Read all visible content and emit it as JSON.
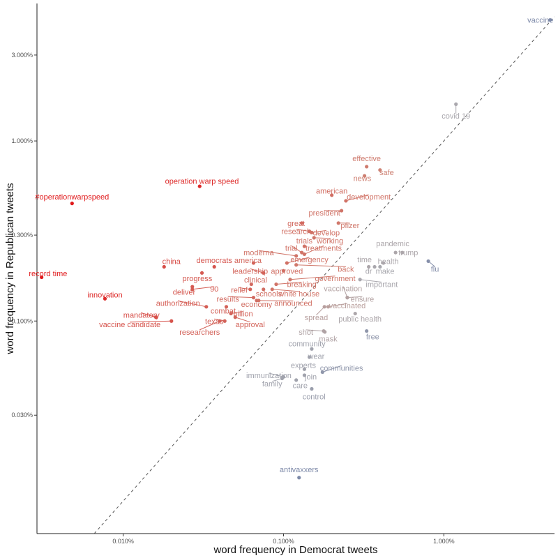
{
  "chart_data": {
    "type": "scatter",
    "title": "",
    "xlabel": "word frequency in Democrat tweets",
    "ylabel": "word frequency in Republican tweets",
    "x_scale": "log10",
    "y_scale": "log10",
    "xlim": [
      0.0029,
      4.9
    ],
    "ylim": [
      0.0066,
      5.8
    ],
    "x_ticks": [
      {
        "value": 0.01,
        "label": "0.010%"
      },
      {
        "value": 0.1,
        "label": "0.100%"
      },
      {
        "value": 1,
        "label": "1.000%"
      }
    ],
    "y_ticks": [
      {
        "value": 0.03,
        "label": "0.030%"
      },
      {
        "value": 0.1,
        "label": "0.100%"
      },
      {
        "value": 0.3,
        "label": "0.300%"
      },
      {
        "value": 1,
        "label": "1.000%"
      },
      {
        "value": 3,
        "label": "3.000%"
      }
    ],
    "reference_line": "y = x (dashed)",
    "grid": false,
    "color_scale": {
      "republican": "#e0191b",
      "neutral": "#a8a8ae",
      "democrat": "#7e8aa9"
    },
    "points": [
      {
        "word": "vaccine",
        "x": 4.6,
        "y": 4.7,
        "lean": 0.0
      },
      {
        "word": "covid 19",
        "x": 1.19,
        "y": 1.6,
        "lean": 0.13
      },
      {
        "word": "effective",
        "x": 0.33,
        "y": 0.72,
        "lean": 0.42
      },
      {
        "word": "safe",
        "x": 0.4,
        "y": 0.69,
        "lean": 0.38
      },
      {
        "word": "news",
        "x": 0.32,
        "y": 0.64,
        "lean": 0.4
      },
      {
        "word": "operation warp speed",
        "x": 0.03,
        "y": 0.56,
        "lean": 0.9
      },
      {
        "word": "#operationwarpspeed",
        "x": 0.0048,
        "y": 0.45,
        "lean": 1.0
      },
      {
        "word": "american",
        "x": 0.2,
        "y": 0.5,
        "lean": 0.5
      },
      {
        "word": "development",
        "x": 0.245,
        "y": 0.465,
        "lean": 0.47
      },
      {
        "word": "president",
        "x": 0.23,
        "y": 0.41,
        "lean": 0.46
      },
      {
        "word": "great",
        "x": 0.13,
        "y": 0.35,
        "lean": 0.52
      },
      {
        "word": "pfizer",
        "x": 0.22,
        "y": 0.35,
        "lean": 0.44
      },
      {
        "word": "research",
        "x": 0.145,
        "y": 0.315,
        "lean": 0.48
      },
      {
        "word": "develop",
        "x": 0.15,
        "y": 0.31,
        "lean": 0.47
      },
      {
        "word": "working",
        "x": 0.155,
        "y": 0.29,
        "lean": 0.46
      },
      {
        "word": "trials",
        "x": 0.135,
        "y": 0.26,
        "lean": 0.47
      },
      {
        "word": "trial",
        "x": 0.13,
        "y": 0.24,
        "lean": 0.47
      },
      {
        "word": "treatments",
        "x": 0.135,
        "y": 0.235,
        "lean": 0.46
      },
      {
        "word": "moderna",
        "x": 0.12,
        "y": 0.23,
        "lean": 0.46
      },
      {
        "word": "pandemic",
        "x": 0.5,
        "y": 0.24,
        "lean": 0.15
      },
      {
        "word": "trump",
        "x": 0.55,
        "y": 0.24,
        "lean": 0.15
      },
      {
        "word": "health",
        "x": 0.42,
        "y": 0.21,
        "lean": 0.14
      },
      {
        "word": "time",
        "x": 0.34,
        "y": 0.2,
        "lean": 0.15
      },
      {
        "word": "flu",
        "x": 0.8,
        "y": 0.215,
        "lean": 0.02
      },
      {
        "word": "dr",
        "x": 0.37,
        "y": 0.2,
        "lean": 0.13
      },
      {
        "word": "make",
        "x": 0.4,
        "y": 0.2,
        "lean": 0.12
      },
      {
        "word": "important",
        "x": 0.3,
        "y": 0.17,
        "lean": 0.13
      },
      {
        "word": "china",
        "x": 0.018,
        "y": 0.2,
        "lean": 0.7
      },
      {
        "word": "democrats",
        "x": 0.037,
        "y": 0.2,
        "lean": 0.65
      },
      {
        "word": "america",
        "x": 0.065,
        "y": 0.21,
        "lean": 0.55
      },
      {
        "word": "emergency",
        "x": 0.105,
        "y": 0.21,
        "lean": 0.48
      },
      {
        "word": "back",
        "x": 0.12,
        "y": 0.205,
        "lean": 0.44
      },
      {
        "word": "leadership",
        "x": 0.075,
        "y": 0.185,
        "lean": 0.55
      },
      {
        "word": "approved",
        "x": 0.1,
        "y": 0.19,
        "lean": 0.5
      },
      {
        "word": "government",
        "x": 0.11,
        "y": 0.17,
        "lean": 0.44
      },
      {
        "word": "progress",
        "x": 0.031,
        "y": 0.185,
        "lean": 0.62
      },
      {
        "word": "clinical",
        "x": 0.063,
        "y": 0.16,
        "lean": 0.52
      },
      {
        "word": "breaking",
        "x": 0.09,
        "y": 0.16,
        "lean": 0.47
      },
      {
        "word": "90",
        "x": 0.027,
        "y": 0.15,
        "lean": 0.6
      },
      {
        "word": "deliver",
        "x": 0.027,
        "y": 0.155,
        "lean": 0.62
      },
      {
        "word": "relief",
        "x": 0.062,
        "y": 0.15,
        "lean": 0.55
      },
      {
        "word": "schools",
        "x": 0.075,
        "y": 0.15,
        "lean": 0.5
      },
      {
        "word": "white house",
        "x": 0.085,
        "y": 0.15,
        "lean": 0.47
      },
      {
        "word": "vaccination",
        "x": 0.25,
        "y": 0.135,
        "lean": 0.2
      },
      {
        "word": "ensure",
        "x": 0.25,
        "y": 0.135,
        "lean": 0.2
      },
      {
        "word": "results",
        "x": 0.065,
        "y": 0.135,
        "lean": 0.52
      },
      {
        "word": "economy",
        "x": 0.068,
        "y": 0.13,
        "lean": 0.5
      },
      {
        "word": "announced",
        "x": 0.07,
        "y": 0.13,
        "lean": 0.48
      },
      {
        "word": "innovation",
        "x": 0.0077,
        "y": 0.133,
        "lean": 0.9
      },
      {
        "word": "authorization",
        "x": 0.033,
        "y": 0.12,
        "lean": 0.6
      },
      {
        "word": "combat",
        "x": 0.044,
        "y": 0.12,
        "lean": 0.57
      },
      {
        "word": "vaccinated",
        "x": 0.19,
        "y": 0.12,
        "lean": 0.24
      },
      {
        "word": "billion",
        "x": 0.047,
        "y": 0.11,
        "lean": 0.56
      },
      {
        "word": "approval",
        "x": 0.05,
        "y": 0.105,
        "lean": 0.55
      },
      {
        "word": "texas",
        "x": 0.043,
        "y": 0.1,
        "lean": 0.56
      },
      {
        "word": "researchers",
        "x": 0.04,
        "y": 0.1,
        "lean": 0.57
      },
      {
        "word": "mandatory",
        "x": 0.016,
        "y": 0.105,
        "lean": 0.68
      },
      {
        "word": "vaccine candidate",
        "x": 0.02,
        "y": 0.1,
        "lean": 0.66
      },
      {
        "word": "spread",
        "x": 0.18,
        "y": 0.12,
        "lean": 0.23
      },
      {
        "word": "public health",
        "x": 0.28,
        "y": 0.11,
        "lean": 0.15
      },
      {
        "word": "shot",
        "x": 0.178,
        "y": 0.088,
        "lean": 0.18
      },
      {
        "word": "mask",
        "x": 0.181,
        "y": 0.087,
        "lean": 0.18
      },
      {
        "word": "free",
        "x": 0.33,
        "y": 0.088,
        "lean": 0.05
      },
      {
        "word": "record time",
        "x": 0.0031,
        "y": 0.175,
        "lean": 1.0
      },
      {
        "word": "community",
        "x": 0.15,
        "y": 0.07,
        "lean": 0.1
      },
      {
        "word": "wear",
        "x": 0.145,
        "y": 0.063,
        "lean": 0.1
      },
      {
        "word": "experts",
        "x": 0.135,
        "y": 0.054,
        "lean": 0.1
      },
      {
        "word": "communities",
        "x": 0.175,
        "y": 0.052,
        "lean": 0.05
      },
      {
        "word": "join",
        "x": 0.135,
        "y": 0.05,
        "lean": 0.1
      },
      {
        "word": "immunization",
        "x": 0.1,
        "y": 0.049,
        "lean": 0.1
      },
      {
        "word": "family",
        "x": 0.098,
        "y": 0.048,
        "lean": 0.1
      },
      {
        "word": "care",
        "x": 0.12,
        "y": 0.047,
        "lean": 0.1
      },
      {
        "word": "control",
        "x": 0.15,
        "y": 0.042,
        "lean": 0.08
      },
      {
        "word": "antivaxxers",
        "x": 0.125,
        "y": 0.0135,
        "lean": 0.0
      }
    ],
    "labels": [
      {
        "word": "vaccine",
        "x": 4.0,
        "y": 4.7
      },
      {
        "word": "covid 19",
        "x": 1.19,
        "y": 1.38
      },
      {
        "word": "effective",
        "x": 0.33,
        "y": 0.8
      },
      {
        "word": "safe",
        "x": 0.44,
        "y": 0.67
      },
      {
        "word": "news",
        "x": 0.31,
        "y": 0.62
      },
      {
        "word": "operation warp speed",
        "x": 0.031,
        "y": 0.6
      },
      {
        "word": "#operationwarpspeed",
        "x": 0.0048,
        "y": 0.49
      },
      {
        "word": "american",
        "x": 0.2,
        "y": 0.53
      },
      {
        "word": "development",
        "x": 0.34,
        "y": 0.49
      },
      {
        "word": "president",
        "x": 0.18,
        "y": 0.4
      },
      {
        "word": "great",
        "x": 0.12,
        "y": 0.35
      },
      {
        "word": "pfizer",
        "x": 0.26,
        "y": 0.34
      },
      {
        "word": "research",
        "x": 0.12,
        "y": 0.315
      },
      {
        "word": "develop",
        "x": 0.185,
        "y": 0.31
      },
      {
        "word": "working",
        "x": 0.195,
        "y": 0.28
      },
      {
        "word": "trials",
        "x": 0.135,
        "y": 0.28
      },
      {
        "word": "trial",
        "x": 0.112,
        "y": 0.255
      },
      {
        "word": "treatments",
        "x": 0.178,
        "y": 0.255
      },
      {
        "word": "moderna",
        "x": 0.07,
        "y": 0.24
      },
      {
        "word": "pandemic",
        "x": 0.48,
        "y": 0.27
      },
      {
        "word": "trump",
        "x": 0.6,
        "y": 0.24
      },
      {
        "word": "health",
        "x": 0.45,
        "y": 0.215
      },
      {
        "word": "time",
        "x": 0.32,
        "y": 0.22
      },
      {
        "word": "flu",
        "x": 0.88,
        "y": 0.195
      },
      {
        "word": "dr",
        "x": 0.34,
        "y": 0.19
      },
      {
        "word": "make",
        "x": 0.43,
        "y": 0.19
      },
      {
        "word": "important",
        "x": 0.41,
        "y": 0.16
      },
      {
        "word": "china",
        "x": 0.02,
        "y": 0.215
      },
      {
        "word": "democrats",
        "x": 0.037,
        "y": 0.218
      },
      {
        "word": "america",
        "x": 0.06,
        "y": 0.218
      },
      {
        "word": "emergency",
        "x": 0.145,
        "y": 0.22
      },
      {
        "word": "back",
        "x": 0.245,
        "y": 0.195
      },
      {
        "word": "leadership",
        "x": 0.062,
        "y": 0.19
      },
      {
        "word": "approved",
        "x": 0.105,
        "y": 0.19
      },
      {
        "word": "government",
        "x": 0.21,
        "y": 0.173
      },
      {
        "word": "progress",
        "x": 0.029,
        "y": 0.173
      },
      {
        "word": "clinical",
        "x": 0.067,
        "y": 0.17
      },
      {
        "word": "breaking",
        "x": 0.13,
        "y": 0.16
      },
      {
        "word": "90",
        "x": 0.037,
        "y": 0.151
      },
      {
        "word": "deliver",
        "x": 0.024,
        "y": 0.145
      },
      {
        "word": "relief",
        "x": 0.053,
        "y": 0.149
      },
      {
        "word": "schools",
        "x": 0.081,
        "y": 0.142
      },
      {
        "word": "white house",
        "x": 0.125,
        "y": 0.142
      },
      {
        "word": "vaccination",
        "x": 0.235,
        "y": 0.152
      },
      {
        "word": "ensure",
        "x": 0.31,
        "y": 0.133
      },
      {
        "word": "results",
        "x": 0.045,
        "y": 0.133
      },
      {
        "word": "economy",
        "x": 0.068,
        "y": 0.124
      },
      {
        "word": "announced",
        "x": 0.115,
        "y": 0.126
      },
      {
        "word": "innovation",
        "x": 0.0077,
        "y": 0.14
      },
      {
        "word": "authorization",
        "x": 0.022,
        "y": 0.126
      },
      {
        "word": "combat",
        "x": 0.042,
        "y": 0.114
      },
      {
        "word": "vaccinated",
        "x": 0.25,
        "y": 0.122
      },
      {
        "word": "billion",
        "x": 0.056,
        "y": 0.11
      },
      {
        "word": "approval",
        "x": 0.062,
        "y": 0.096
      },
      {
        "word": "texas",
        "x": 0.037,
        "y": 0.1
      },
      {
        "word": "researchers",
        "x": 0.03,
        "y": 0.087
      },
      {
        "word": "mandatory",
        "x": 0.013,
        "y": 0.108
      },
      {
        "word": "vaccine candidate",
        "x": 0.011,
        "y": 0.096
      },
      {
        "word": "spread",
        "x": 0.16,
        "y": 0.105
      },
      {
        "word": "public health",
        "x": 0.3,
        "y": 0.103
      },
      {
        "word": "shot",
        "x": 0.138,
        "y": 0.087
      },
      {
        "word": "mask",
        "x": 0.19,
        "y": 0.08
      },
      {
        "word": "free",
        "x": 0.36,
        "y": 0.082
      },
      {
        "word": "record time",
        "x": 0.0034,
        "y": 0.184
      },
      {
        "word": "community",
        "x": 0.14,
        "y": 0.075
      },
      {
        "word": "wear",
        "x": 0.16,
        "y": 0.064
      },
      {
        "word": "experts",
        "x": 0.133,
        "y": 0.057
      },
      {
        "word": "communities",
        "x": 0.23,
        "y": 0.055
      },
      {
        "word": "join",
        "x": 0.148,
        "y": 0.049
      },
      {
        "word": "immunization",
        "x": 0.081,
        "y": 0.05
      },
      {
        "word": "family",
        "x": 0.085,
        "y": 0.045
      },
      {
        "word": "care",
        "x": 0.127,
        "y": 0.044
      },
      {
        "word": "control",
        "x": 0.155,
        "y": 0.038
      },
      {
        "word": "antivaxxers",
        "x": 0.125,
        "y": 0.015
      }
    ]
  }
}
